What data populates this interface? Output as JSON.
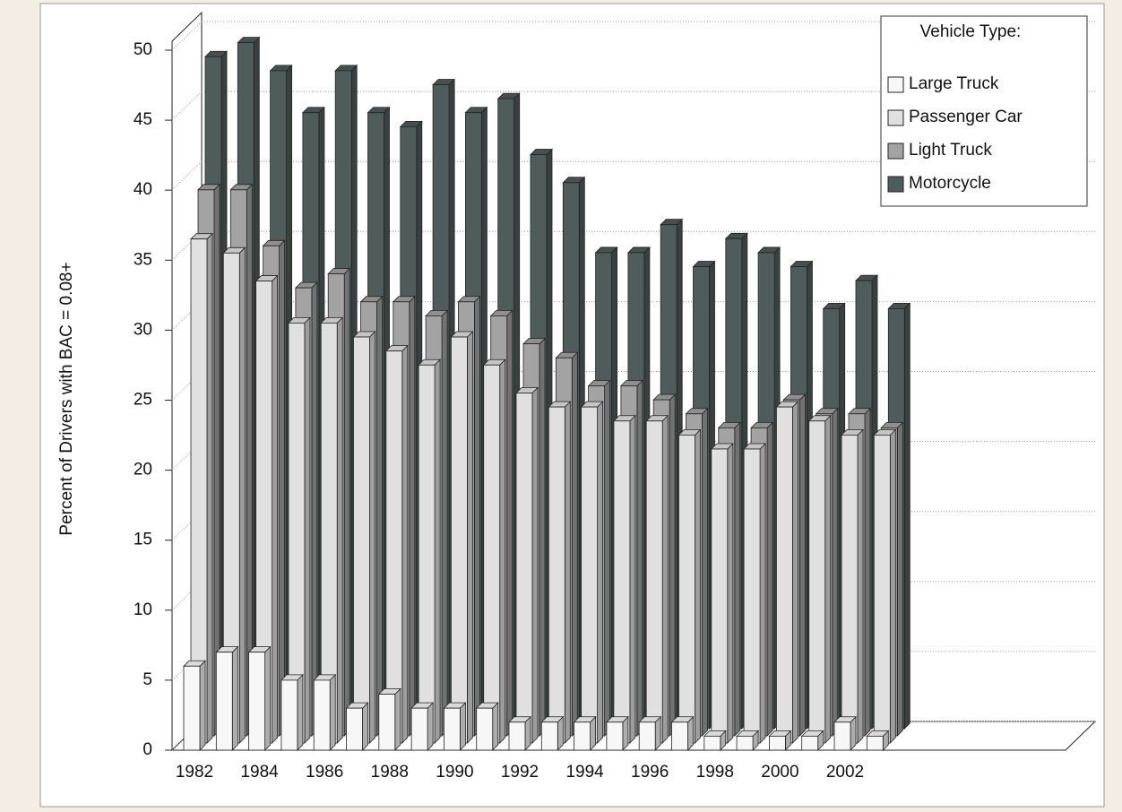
{
  "chart_data": {
    "type": "bar3d",
    "y_label": "Percent of Drivers with BAC = 0.08+",
    "legend_title": "Vehicle Type:",
    "categories": [
      "1982",
      null,
      "1984",
      null,
      "1986",
      null,
      "1988",
      null,
      "1990",
      null,
      "1992",
      null,
      "1994",
      null,
      "1996",
      null,
      "1998",
      null,
      "2000",
      null,
      "2002",
      null
    ],
    "series": [
      {
        "name": "Large Truck",
        "color": "#f7f7f7",
        "values": [
          6,
          7,
          7,
          5,
          5,
          3,
          4,
          3,
          3,
          3,
          2,
          2,
          2,
          2,
          2,
          2,
          1,
          1,
          1,
          1,
          2,
          1
        ]
      },
      {
        "name": "Passenger Car",
        "color": "#e0e0e0",
        "values": [
          36,
          35,
          33,
          30,
          30,
          29,
          28,
          27,
          29,
          27,
          25,
          24,
          24,
          23,
          23,
          22,
          21,
          21,
          24,
          23,
          22,
          22
        ]
      },
      {
        "name": "Light Truck",
        "color": "#a3a3a3",
        "values": [
          39,
          39,
          35,
          32,
          33,
          31,
          31,
          30,
          31,
          30,
          28,
          27,
          25,
          25,
          24,
          23,
          22,
          22,
          24,
          23,
          23,
          22
        ]
      },
      {
        "name": "Motorcycle",
        "color": "#505b5b",
        "values": [
          48,
          49,
          47,
          44,
          47,
          44,
          43,
          46,
          44,
          45,
          41,
          39,
          34,
          34,
          36,
          33,
          35,
          34,
          33,
          30,
          32,
          30
        ]
      }
    ],
    "ylim": [
      0,
      50
    ],
    "yticks": [
      0,
      5,
      10,
      15,
      20,
      25,
      30,
      35,
      40,
      45,
      50
    ],
    "grid": true,
    "legend": "top-right"
  }
}
